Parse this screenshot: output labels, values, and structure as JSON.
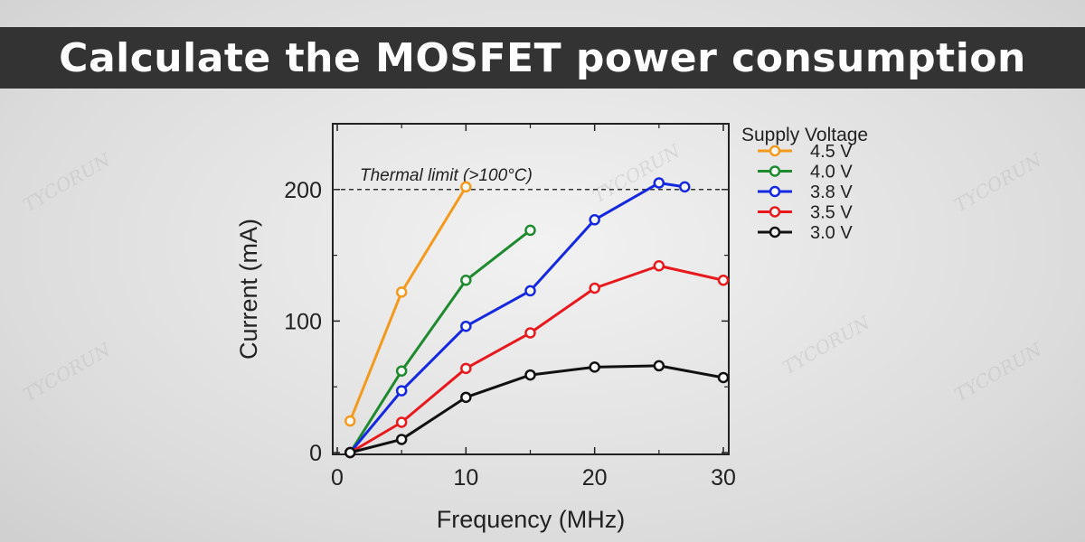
{
  "banner": {
    "title": "Calculate the MOSFET power consumption"
  },
  "watermark": "TYCORUN",
  "chart_data": {
    "type": "line",
    "title": "",
    "xlabel": "Frequency (MHz)",
    "ylabel": "Current (mA)",
    "xlim": [
      0,
      30
    ],
    "ylim": [
      0,
      250
    ],
    "xticks": [
      0,
      10,
      20,
      30
    ],
    "yticks": [
      0,
      100,
      200
    ],
    "grid": false,
    "legend_title": "Supply Voltage",
    "legend_placement": "outside-right",
    "reference_line": {
      "y": 200,
      "label": "Thermal limit (>100°C)",
      "style": "dashed",
      "color": "#333333"
    },
    "series": [
      {
        "name": "4.5 V",
        "color": "#f39a1c",
        "x": [
          1,
          5,
          10
        ],
        "y": [
          24,
          122,
          202
        ]
      },
      {
        "name": "4.0 V",
        "color": "#1e8a2e",
        "x": [
          1,
          5,
          10,
          15
        ],
        "y": [
          0,
          62,
          131,
          169
        ]
      },
      {
        "name": "3.8 V",
        "color": "#1428e0",
        "x": [
          1,
          5,
          10,
          15,
          20,
          25,
          27
        ],
        "y": [
          0,
          47,
          96,
          123,
          177,
          205,
          202
        ]
      },
      {
        "name": "3.5 V",
        "color": "#e8191c",
        "x": [
          1,
          5,
          10,
          15,
          20,
          25,
          30
        ],
        "y": [
          0,
          23,
          64,
          91,
          125,
          142,
          131
        ]
      },
      {
        "name": "3.0 V",
        "color": "#111111",
        "x": [
          1,
          5,
          10,
          15,
          20,
          25,
          30
        ],
        "y": [
          0,
          10,
          42,
          59,
          65,
          66,
          57
        ]
      }
    ]
  }
}
